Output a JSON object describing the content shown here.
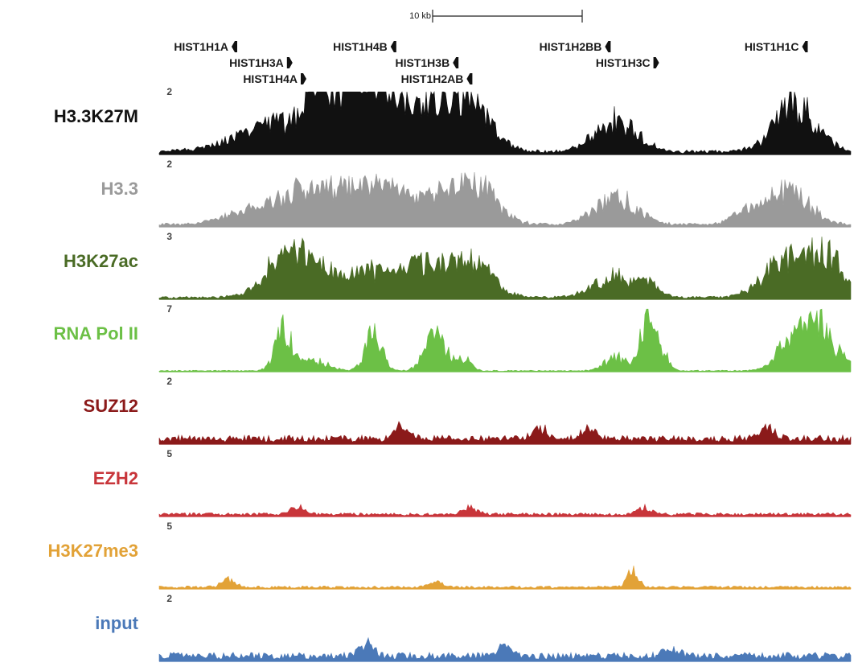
{
  "chart_data": {
    "type": "area",
    "scale_bar": {
      "label": "10 kb"
    },
    "genes": [
      {
        "name": "HIST1H1A",
        "row": 0,
        "position": 0.1,
        "strand": "minus"
      },
      {
        "name": "HIST1H4B",
        "row": 0,
        "position": 0.33,
        "strand": "minus"
      },
      {
        "name": "HIST1H2BB",
        "row": 0,
        "position": 0.64,
        "strand": "minus"
      },
      {
        "name": "HIST1H1C",
        "row": 0,
        "position": 0.925,
        "strand": "minus"
      },
      {
        "name": "HIST1H3A",
        "row": 1,
        "position": 0.18,
        "strand": "plus"
      },
      {
        "name": "HIST1H3B",
        "row": 1,
        "position": 0.42,
        "strand": "minus"
      },
      {
        "name": "HIST1H3C",
        "row": 1,
        "position": 0.71,
        "strand": "plus"
      },
      {
        "name": "HIST1H4A",
        "row": 2,
        "position": 0.2,
        "strand": "plus"
      },
      {
        "name": "HIST1H2AB",
        "row": 2,
        "position": 0.44,
        "strand": "minus"
      }
    ],
    "tracks": [
      {
        "name": "H3.3K27M",
        "max": "2",
        "color": "#111111",
        "peaks": [
          [
            0.18,
            0.6,
            0.06
          ],
          [
            0.225,
            0.95,
            0.012
          ],
          [
            0.27,
            0.75,
            0.035
          ],
          [
            0.31,
            1.0,
            0.03
          ],
          [
            0.38,
            0.85,
            0.035
          ],
          [
            0.45,
            0.95,
            0.03
          ],
          [
            0.66,
            0.65,
            0.03
          ],
          [
            0.92,
            0.95,
            0.03
          ]
        ],
        "base": 0.06
      },
      {
        "name": "H3.3",
        "max": "2",
        "color": "#9a9a9a",
        "peaks": [
          [
            0.12,
            0.25,
            0.03
          ],
          [
            0.2,
            0.65,
            0.035
          ],
          [
            0.27,
            0.6,
            0.035
          ],
          [
            0.33,
            0.55,
            0.03
          ],
          [
            0.4,
            0.55,
            0.035
          ],
          [
            0.46,
            0.7,
            0.03
          ],
          [
            0.66,
            0.55,
            0.03
          ],
          [
            0.85,
            0.25,
            0.02
          ],
          [
            0.91,
            0.7,
            0.03
          ]
        ],
        "base": 0.05
      },
      {
        "name": "H3K27ac",
        "max": "3",
        "color": "#4a6b25",
        "peaks": [
          [
            0.18,
            0.7,
            0.03
          ],
          [
            0.22,
            0.55,
            0.03
          ],
          [
            0.3,
            0.5,
            0.035
          ],
          [
            0.38,
            0.6,
            0.035
          ],
          [
            0.45,
            0.75,
            0.03
          ],
          [
            0.66,
            0.45,
            0.03
          ],
          [
            0.71,
            0.25,
            0.015
          ],
          [
            0.9,
            0.65,
            0.03
          ],
          [
            0.96,
            0.9,
            0.03
          ]
        ],
        "base": 0.04
      },
      {
        "name": "RNA Pol II",
        "max": "7",
        "color": "#6cc046",
        "peaks": [
          [
            0.18,
            0.85,
            0.012
          ],
          [
            0.225,
            0.2,
            0.02
          ],
          [
            0.31,
            0.75,
            0.012
          ],
          [
            0.4,
            0.75,
            0.015
          ],
          [
            0.44,
            0.25,
            0.01
          ],
          [
            0.66,
            0.3,
            0.015
          ],
          [
            0.705,
            0.95,
            0.01
          ],
          [
            0.725,
            0.4,
            0.01
          ],
          [
            0.95,
            1.0,
            0.025
          ],
          [
            0.91,
            0.45,
            0.02
          ]
        ],
        "base": 0.02
      },
      {
        "name": "SUZ12",
        "max": "2",
        "color": "#8b1a1a",
        "peaks": [
          [
            0.35,
            0.3,
            0.01
          ],
          [
            0.55,
            0.25,
            0.01
          ],
          [
            0.62,
            0.2,
            0.01
          ],
          [
            0.88,
            0.25,
            0.01
          ]
        ],
        "base": 0.12
      },
      {
        "name": "EZH2",
        "max": "5",
        "color": "#c8353a",
        "peaks": [
          [
            0.2,
            0.15,
            0.01
          ],
          [
            0.45,
            0.15,
            0.01
          ],
          [
            0.7,
            0.15,
            0.01
          ]
        ],
        "base": 0.05
      },
      {
        "name": "H3K27me3",
        "max": "5",
        "color": "#e2a237",
        "peaks": [
          [
            0.1,
            0.15,
            0.01
          ],
          [
            0.4,
            0.12,
            0.01
          ],
          [
            0.685,
            0.35,
            0.008
          ]
        ],
        "base": 0.04
      },
      {
        "name": "input",
        "max": "2",
        "color": "#4b79b8",
        "peaks": [
          [
            0.3,
            0.25,
            0.01
          ],
          [
            0.5,
            0.2,
            0.01
          ],
          [
            0.74,
            0.2,
            0.01
          ]
        ],
        "base": 0.12
      }
    ]
  }
}
